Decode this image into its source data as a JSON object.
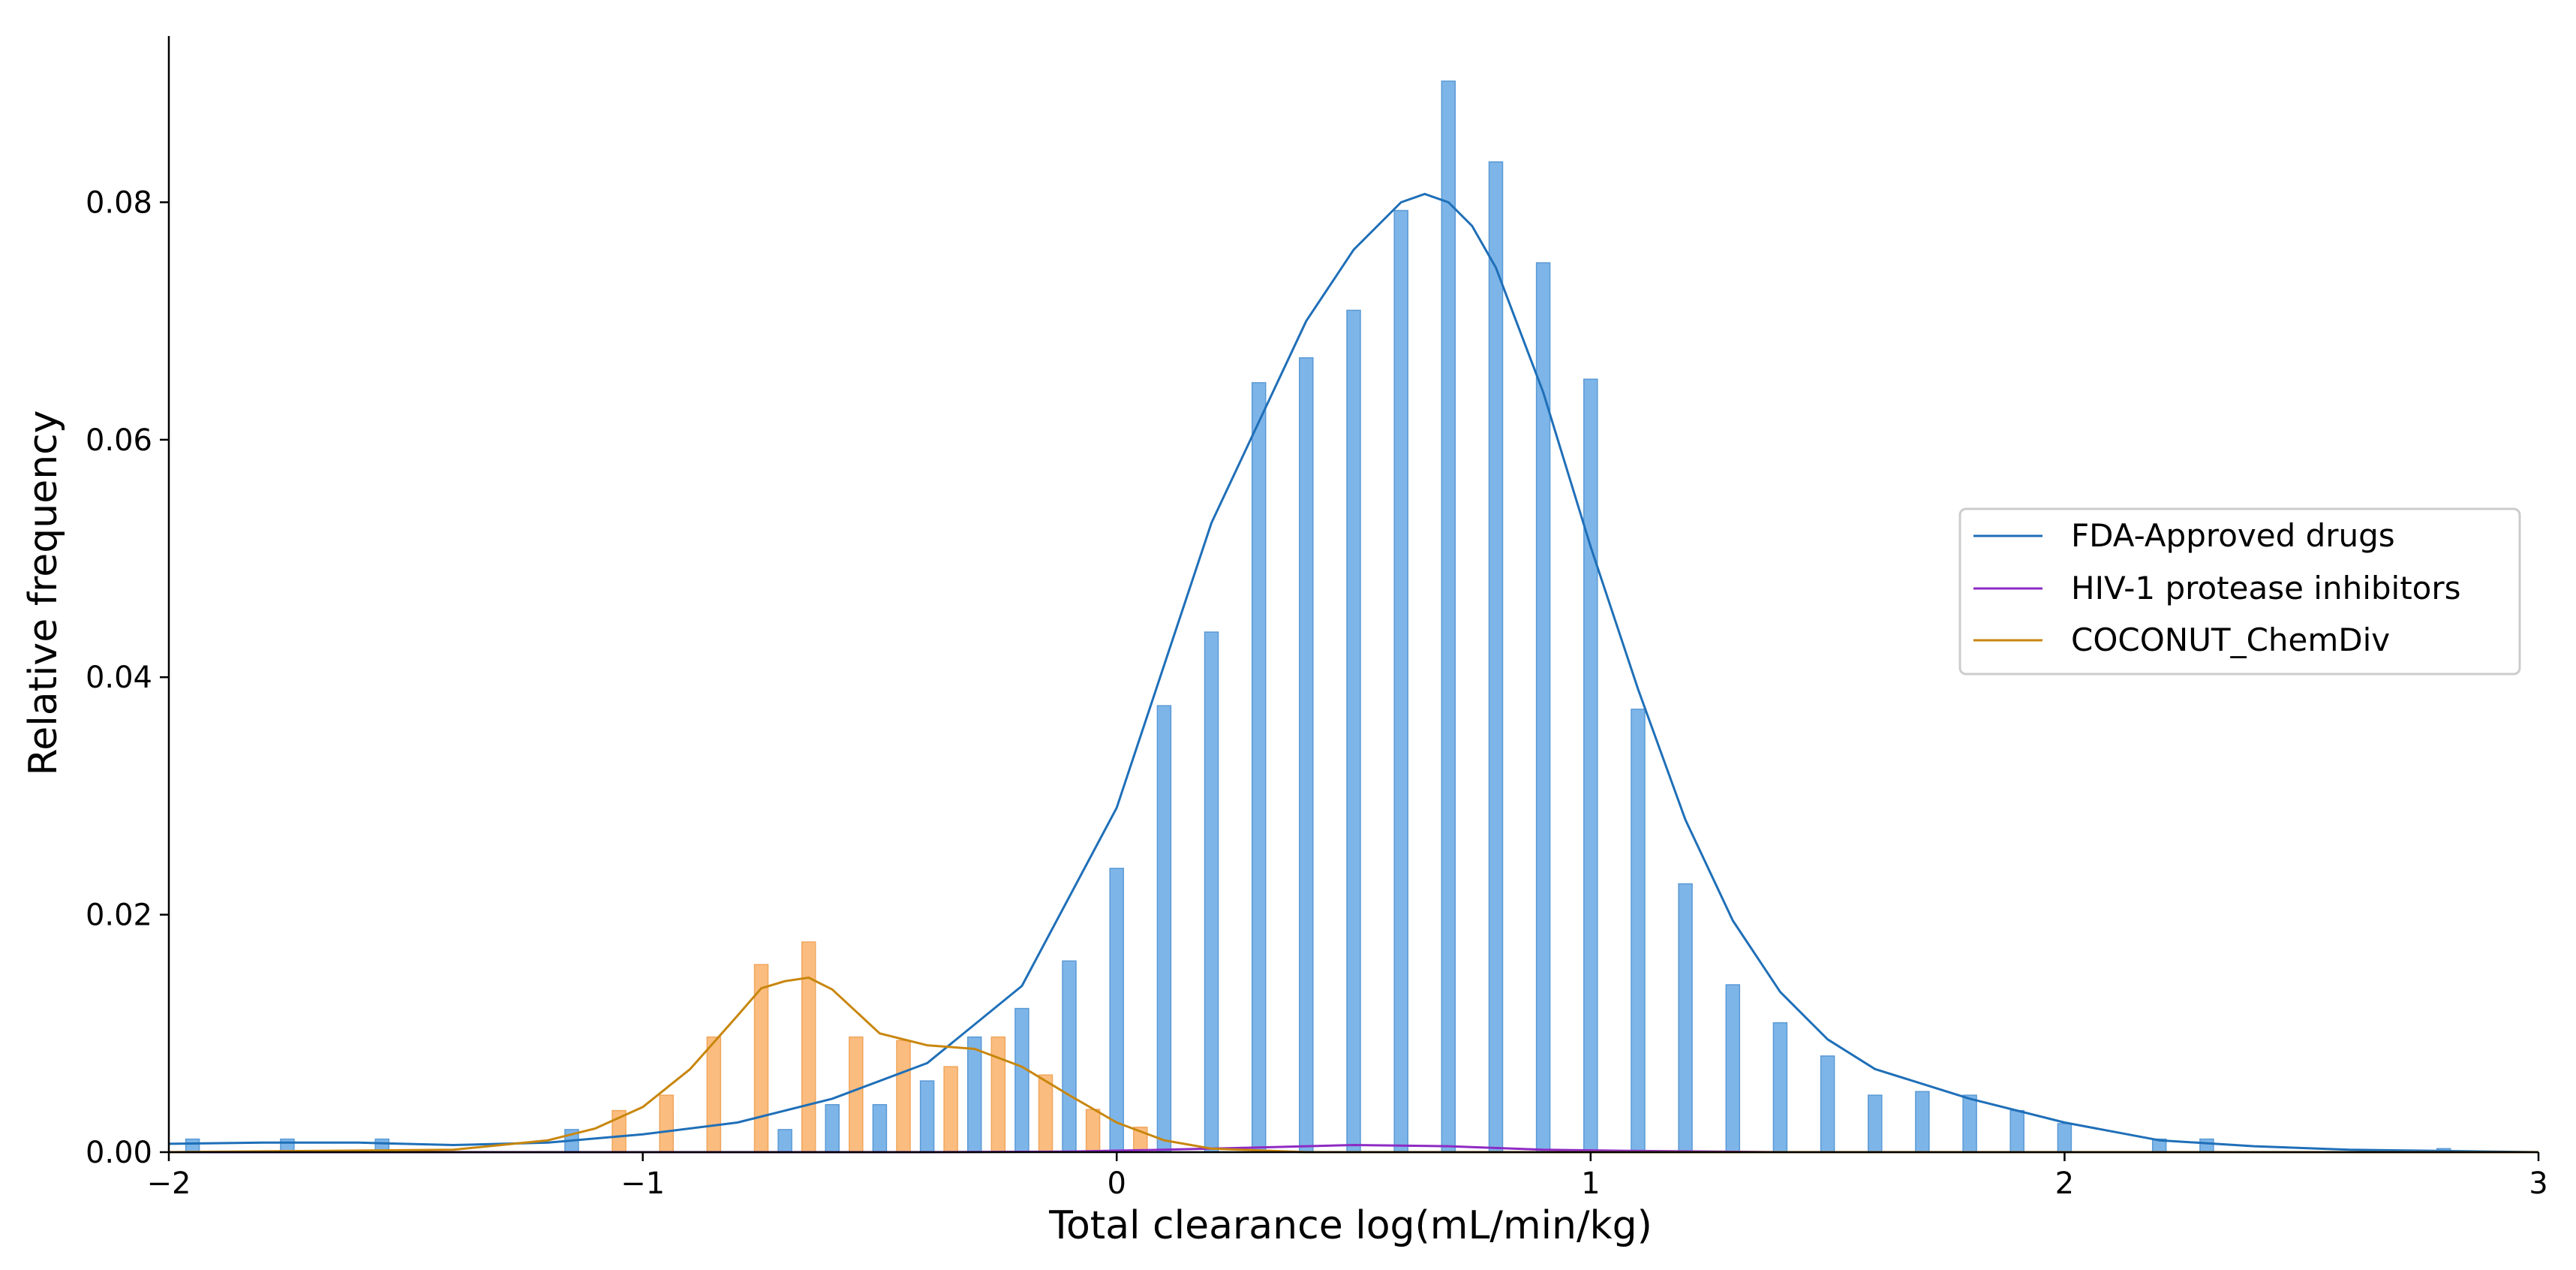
{
  "chart_data": {
    "type": "bar",
    "title": "",
    "xlabel": "Total clearance log(mL/min/kg)",
    "ylabel": "Relative frequency",
    "xlim": [
      -2,
      3
    ],
    "ylim": [
      0,
      0.094
    ],
    "xticks": [
      {
        "value": -2,
        "label": "−2"
      },
      {
        "value": -1,
        "label": "−1"
      },
      {
        "value": 0,
        "label": "0"
      },
      {
        "value": 1,
        "label": "1"
      },
      {
        "value": 2,
        "label": "2"
      },
      {
        "value": 3,
        "label": "3"
      }
    ],
    "yticks": [
      {
        "value": 0.0,
        "label": "0.00"
      },
      {
        "value": 0.02,
        "label": "0.02"
      },
      {
        "value": 0.04,
        "label": "0.04"
      },
      {
        "value": 0.06,
        "label": "0.06"
      },
      {
        "value": 0.08,
        "label": "0.08"
      }
    ],
    "grid": false,
    "legend_position": "center-right",
    "legend": [
      {
        "label": "FDA-Approved drugs",
        "color": "#1f6fb8"
      },
      {
        "label": "HIV-1 protease inhibitors",
        "color": "#8e2bc4"
      },
      {
        "label": "COCONUT_ChemDiv",
        "color": "#c8860d"
      }
    ],
    "bar_series": [
      {
        "series": "FDA-Approved drugs",
        "color": "#7eb5e8",
        "edge": "#5a9ad6",
        "points": [
          [
            -1.95,
            0.0011
          ],
          [
            -1.75,
            0.0011
          ],
          [
            -1.55,
            0.0011
          ],
          [
            -1.15,
            0.0019
          ],
          [
            -0.95,
            0.0032
          ],
          [
            -0.85,
            0.0019
          ],
          [
            -0.7,
            0.0019
          ],
          [
            -0.6,
            0.004
          ],
          [
            -0.5,
            0.004
          ],
          [
            -0.4,
            0.006
          ],
          [
            -0.3,
            0.0097
          ],
          [
            -0.2,
            0.0121
          ],
          [
            -0.1,
            0.0161
          ],
          [
            0.0,
            0.0239
          ],
          [
            0.1,
            0.0376
          ],
          [
            0.2,
            0.0438
          ],
          [
            0.3,
            0.0648
          ],
          [
            0.4,
            0.0669
          ],
          [
            0.5,
            0.0709
          ],
          [
            0.6,
            0.0793
          ],
          [
            0.7,
            0.0902
          ],
          [
            0.8,
            0.0834
          ],
          [
            0.9,
            0.0749
          ],
          [
            1.0,
            0.0651
          ],
          [
            1.1,
            0.0373
          ],
          [
            1.2,
            0.0226
          ],
          [
            1.3,
            0.0141
          ],
          [
            1.4,
            0.0109
          ],
          [
            1.5,
            0.0081
          ],
          [
            1.6,
            0.0048
          ],
          [
            1.7,
            0.0051
          ],
          [
            1.8,
            0.0048
          ],
          [
            1.9,
            0.0035
          ],
          [
            2.0,
            0.0024
          ],
          [
            2.2,
            0.0011
          ],
          [
            2.3,
            0.0011
          ],
          [
            2.8,
            0.0003
          ]
        ]
      },
      {
        "series": "COCONUT_ChemDiv",
        "color": "#fbbd7f",
        "edge": "#f0a65c",
        "points": [
          [
            -1.05,
            0.0035
          ],
          [
            -0.95,
            0.0048
          ],
          [
            -0.85,
            0.0097
          ],
          [
            -0.75,
            0.0158
          ],
          [
            -0.65,
            0.0177
          ],
          [
            -0.55,
            0.0097
          ],
          [
            -0.45,
            0.0094
          ],
          [
            -0.35,
            0.0072
          ],
          [
            -0.25,
            0.0097
          ],
          [
            -0.15,
            0.0065
          ],
          [
            -0.05,
            0.0036
          ],
          [
            0.05,
            0.0021
          ]
        ]
      },
      {
        "series": "HIV-1 protease inhibitors",
        "color": "#c9a6e6",
        "edge": "#b185d9",
        "points": [
          [
            0.95,
            0.0002
          ]
        ]
      }
    ],
    "curves": [
      {
        "series": "FDA-Approved drugs",
        "color": "#1f6fb8",
        "x": [
          -2.0,
          -1.8,
          -1.6,
          -1.4,
          -1.2,
          -1.0,
          -0.8,
          -0.6,
          -0.4,
          -0.2,
          0.0,
          0.2,
          0.4,
          0.5,
          0.6,
          0.65,
          0.7,
          0.75,
          0.8,
          0.9,
          1.0,
          1.1,
          1.2,
          1.3,
          1.4,
          1.5,
          1.6,
          1.8,
          2.0,
          2.2,
          2.4,
          2.6,
          2.8,
          3.0
        ],
        "y": [
          0.0007,
          0.0008,
          0.0008,
          0.0006,
          0.0008,
          0.0015,
          0.0025,
          0.0045,
          0.0075,
          0.014,
          0.029,
          0.053,
          0.07,
          0.076,
          0.08,
          0.0807,
          0.08,
          0.078,
          0.0745,
          0.064,
          0.051,
          0.039,
          0.028,
          0.0195,
          0.0135,
          0.0095,
          0.007,
          0.0045,
          0.0025,
          0.001,
          0.0005,
          0.0002,
          0.0001,
          0.0
        ]
      },
      {
        "series": "HIV-1 protease inhibitors",
        "color": "#8e2bc4",
        "x": [
          -2.0,
          -0.4,
          -0.1,
          0.1,
          0.3,
          0.5,
          0.7,
          0.9,
          1.1,
          1.4,
          3.0
        ],
        "y": [
          0.0,
          0.0,
          5e-05,
          0.0002,
          0.0004,
          0.0006,
          0.0005,
          0.0002,
          0.0001,
          0.0,
          0.0
        ]
      },
      {
        "series": "COCONUT_ChemDiv",
        "color": "#c8860d",
        "x": [
          -2.0,
          -1.4,
          -1.2,
          -1.1,
          -1.0,
          -0.9,
          -0.8,
          -0.75,
          -0.7,
          -0.65,
          -0.6,
          -0.5,
          -0.4,
          -0.3,
          -0.2,
          -0.1,
          0.0,
          0.1,
          0.2,
          0.4,
          3.0
        ],
        "y": [
          0.0,
          0.0002,
          0.001,
          0.002,
          0.0038,
          0.007,
          0.0115,
          0.0138,
          0.0144,
          0.0147,
          0.0137,
          0.01,
          0.009,
          0.0087,
          0.0072,
          0.0048,
          0.0025,
          0.001,
          0.0003,
          0.0,
          0.0
        ]
      }
    ]
  }
}
